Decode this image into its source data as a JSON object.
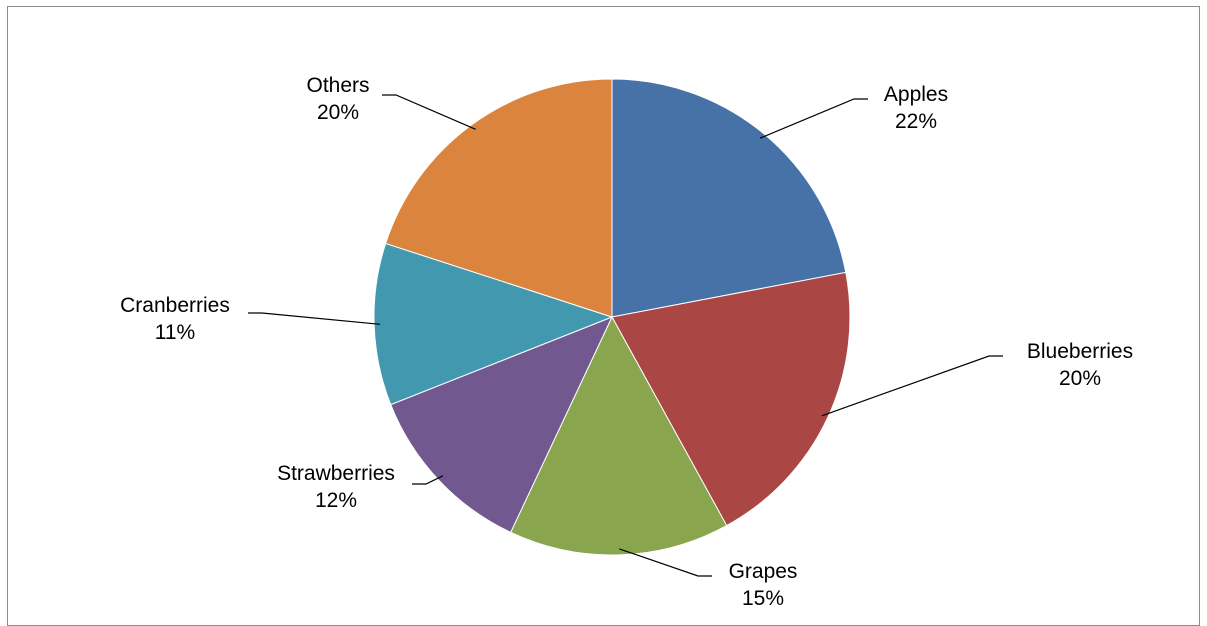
{
  "chart_data": {
    "type": "pie",
    "title": "",
    "start_angle_deg": 0,
    "direction": "clockwise",
    "slices": [
      {
        "label": "Apples",
        "percent_label": "22%",
        "value": 22,
        "color": "#4672A8"
      },
      {
        "label": "Blueberries",
        "percent_label": "20%",
        "value": 20,
        "color": "#AA4644"
      },
      {
        "label": "Grapes",
        "percent_label": "15%",
        "value": 15,
        "color": "#89A54E"
      },
      {
        "label": "Strawberries",
        "percent_label": "12%",
        "value": 12,
        "color": "#71588F"
      },
      {
        "label": "Cranberries",
        "percent_label": "11%",
        "value": 11,
        "color": "#4198AF"
      },
      {
        "label": "Others",
        "percent_label": "20%",
        "value": 20,
        "color": "#DB843D"
      }
    ]
  }
}
